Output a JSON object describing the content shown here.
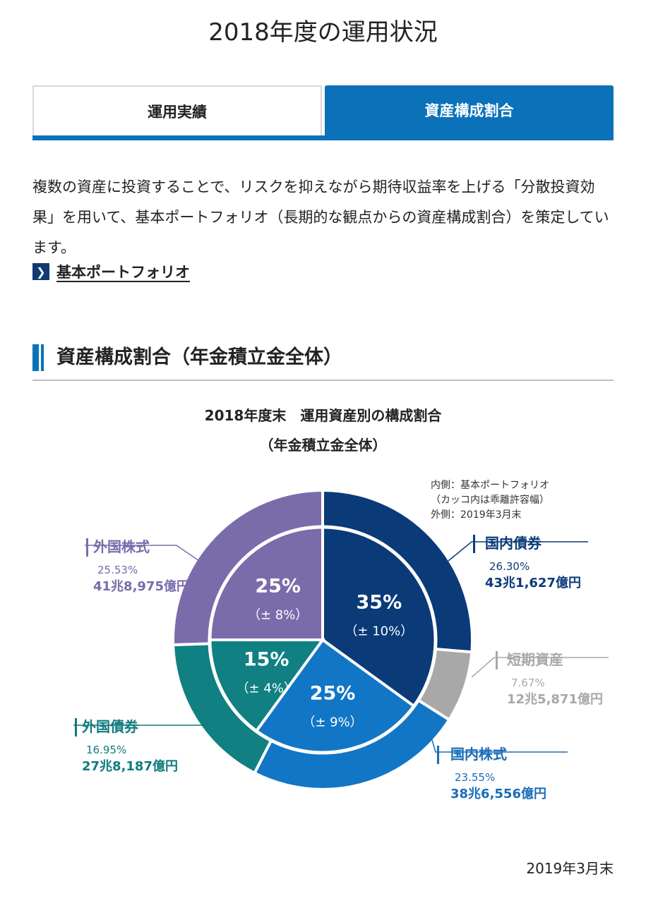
{
  "page_title": "2018年度の運用状況",
  "tabs": {
    "left": "運用実績",
    "right": "資産構成割合"
  },
  "intro_text": "複数の資産に投資することで、リスクを抑えながら期待収益率を上げる「分散投資効果」を用いて、基本ポートフォリオ（長期的な観点からの資産構成割合）を策定しています。",
  "link_label": "基本ポートフォリオ",
  "section_heading": "資産構成割合（年金積立金全体）",
  "footer_date": "2019年3月末",
  "chart_data": {
    "type": "pie",
    "title": "2018年度末　運用資産別の構成割合",
    "subtitle": "（年金積立金全体）",
    "legend_note": [
      "内側：基本ポートフォリオ",
      "（カッコ内は乖離許容幅）",
      "外側：2019年3月末"
    ],
    "outer": [
      {
        "name": "国内債券",
        "percent_label": "26.30%",
        "value": 26.3,
        "amount": "43兆1,627億円",
        "color": "#0b3a78",
        "label_color": "#0b3a78"
      },
      {
        "name": "短期資産",
        "percent_label": "7.67%",
        "value": 7.67,
        "amount": "12兆5,871億円",
        "color": "#a8a8a8",
        "label_color": "#a8a8a8"
      },
      {
        "name": "国内株式",
        "percent_label": "23.55%",
        "value": 23.55,
        "amount": "38兆6,556億円",
        "color": "#1276c6",
        "label_color": "#1a6cb8"
      },
      {
        "name": "外国債券",
        "percent_label": "16.95%",
        "value": 16.95,
        "amount": "27兆8,187億円",
        "color": "#118083",
        "label_color": "#0f7b7e"
      },
      {
        "name": "外国株式",
        "percent_label": "25.53%",
        "value": 25.53,
        "amount": "41兆8,975億円",
        "color": "#7a6cab",
        "label_color": "#7a6cab"
      }
    ],
    "inner": [
      {
        "name": "国内債券",
        "value": 35,
        "label": "35%",
        "range": "（± 10%）",
        "color": "#0b3a78"
      },
      {
        "name": "国内株式",
        "value": 25,
        "label": "25%",
        "range": "（± 9%）",
        "color": "#1276c6"
      },
      {
        "name": "外国債券",
        "value": 15,
        "label": "15%",
        "range": "（± 4%）",
        "color": "#118083"
      },
      {
        "name": "外国株式",
        "value": 25,
        "label": "25%",
        "range": "（± 8%）",
        "color": "#7a6cab"
      }
    ]
  }
}
